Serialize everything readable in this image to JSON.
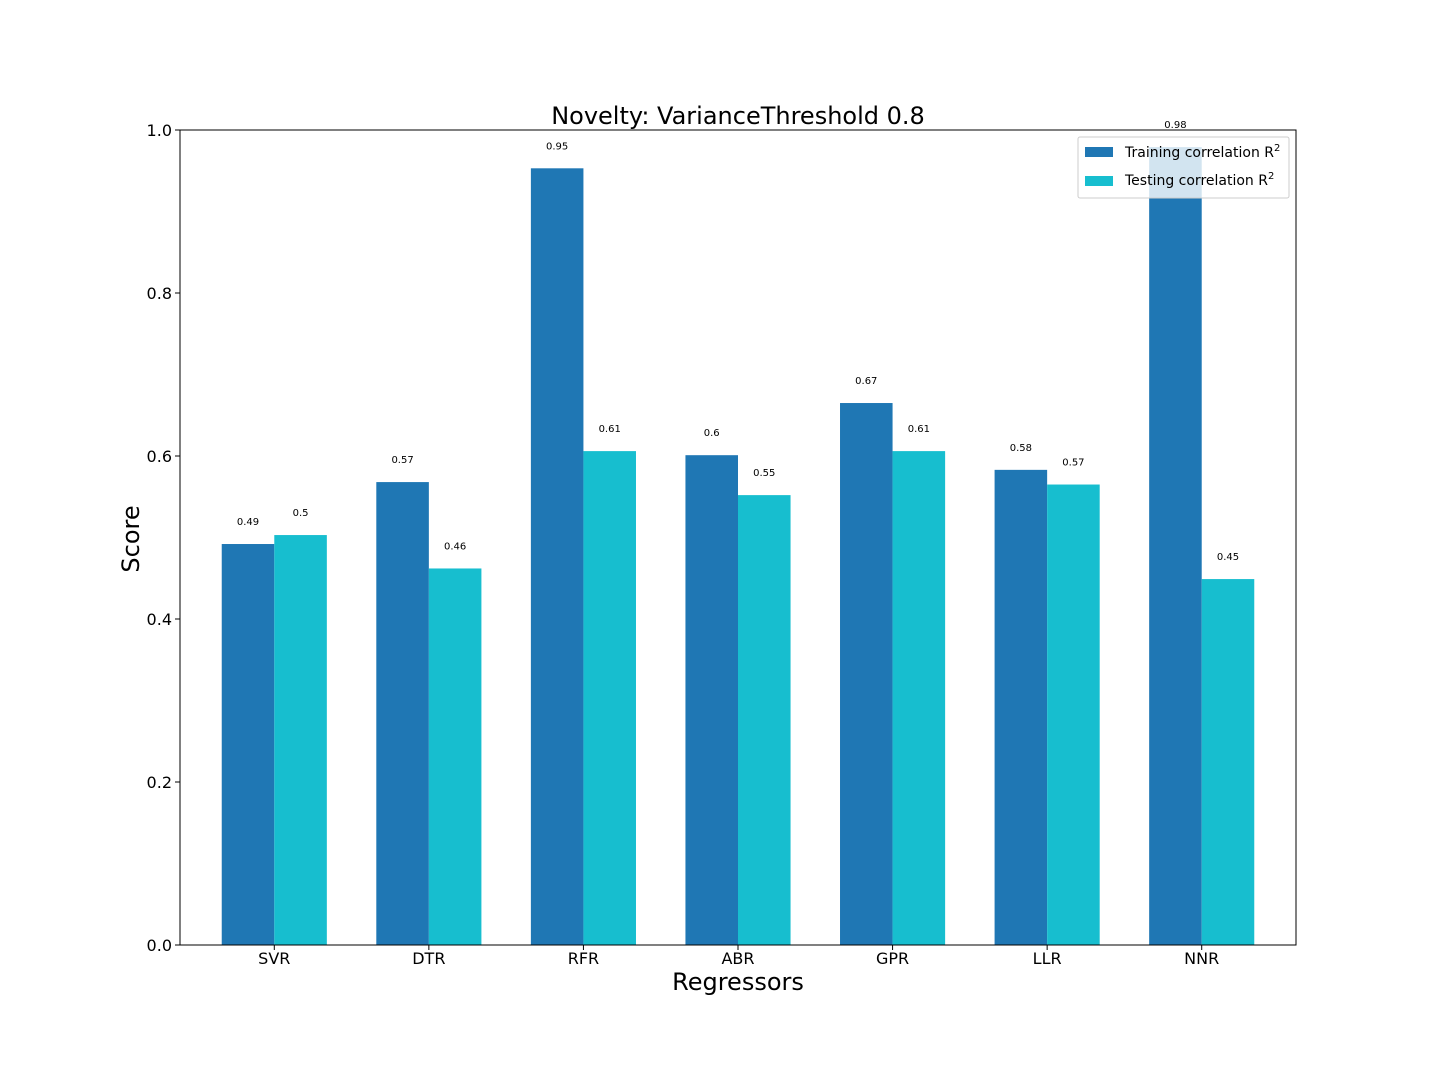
{
  "chart_data": {
    "type": "bar",
    "title": "Novelty: VarianceThreshold  0.8",
    "xlabel": "Regressors",
    "ylabel": "Score",
    "categories": [
      "SVR",
      "DTR",
      "RFR",
      "ABR",
      "GPR",
      "LLR",
      "NNR"
    ],
    "series": [
      {
        "name": "Training correlation R",
        "superscript": "2",
        "color": "#1f77b4",
        "values": [
          0.492,
          0.568,
          0.953,
          0.601,
          0.665,
          0.583,
          0.979
        ],
        "labels": [
          "0.49",
          "0.57",
          "0.95",
          "0.6",
          "0.67",
          "0.58",
          "0.98"
        ]
      },
      {
        "name": "Testing correlation R",
        "superscript": "2",
        "color": "#17becf",
        "values": [
          0.503,
          0.462,
          0.606,
          0.552,
          0.606,
          0.565,
          0.449
        ],
        "labels": [
          "0.5",
          "0.46",
          "0.61",
          "0.55",
          "0.61",
          "0.57",
          "0.45"
        ]
      }
    ],
    "ylim": [
      0.0,
      1.0
    ],
    "yticks": [
      "0.0",
      "0.2",
      "0.4",
      "0.6",
      "0.8",
      "1.0"
    ],
    "grid": false,
    "legend_position": "top-right"
  }
}
